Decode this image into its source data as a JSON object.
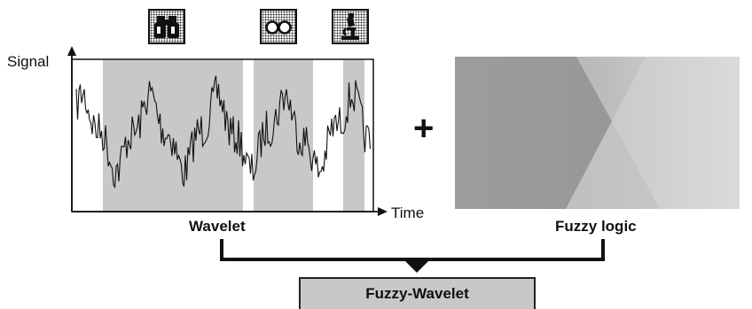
{
  "signal_panel": {
    "y_axis_label": "Signal",
    "x_axis_label": "Time",
    "caption": "Wavelet",
    "icons": [
      "binoculars-icon",
      "glasses-icon",
      "microscope-icon"
    ]
  },
  "operator": "+",
  "fuzzy_panel": {
    "caption": "Fuzzy logic"
  },
  "result": {
    "label": "Fuzzy-Wavelet"
  }
}
